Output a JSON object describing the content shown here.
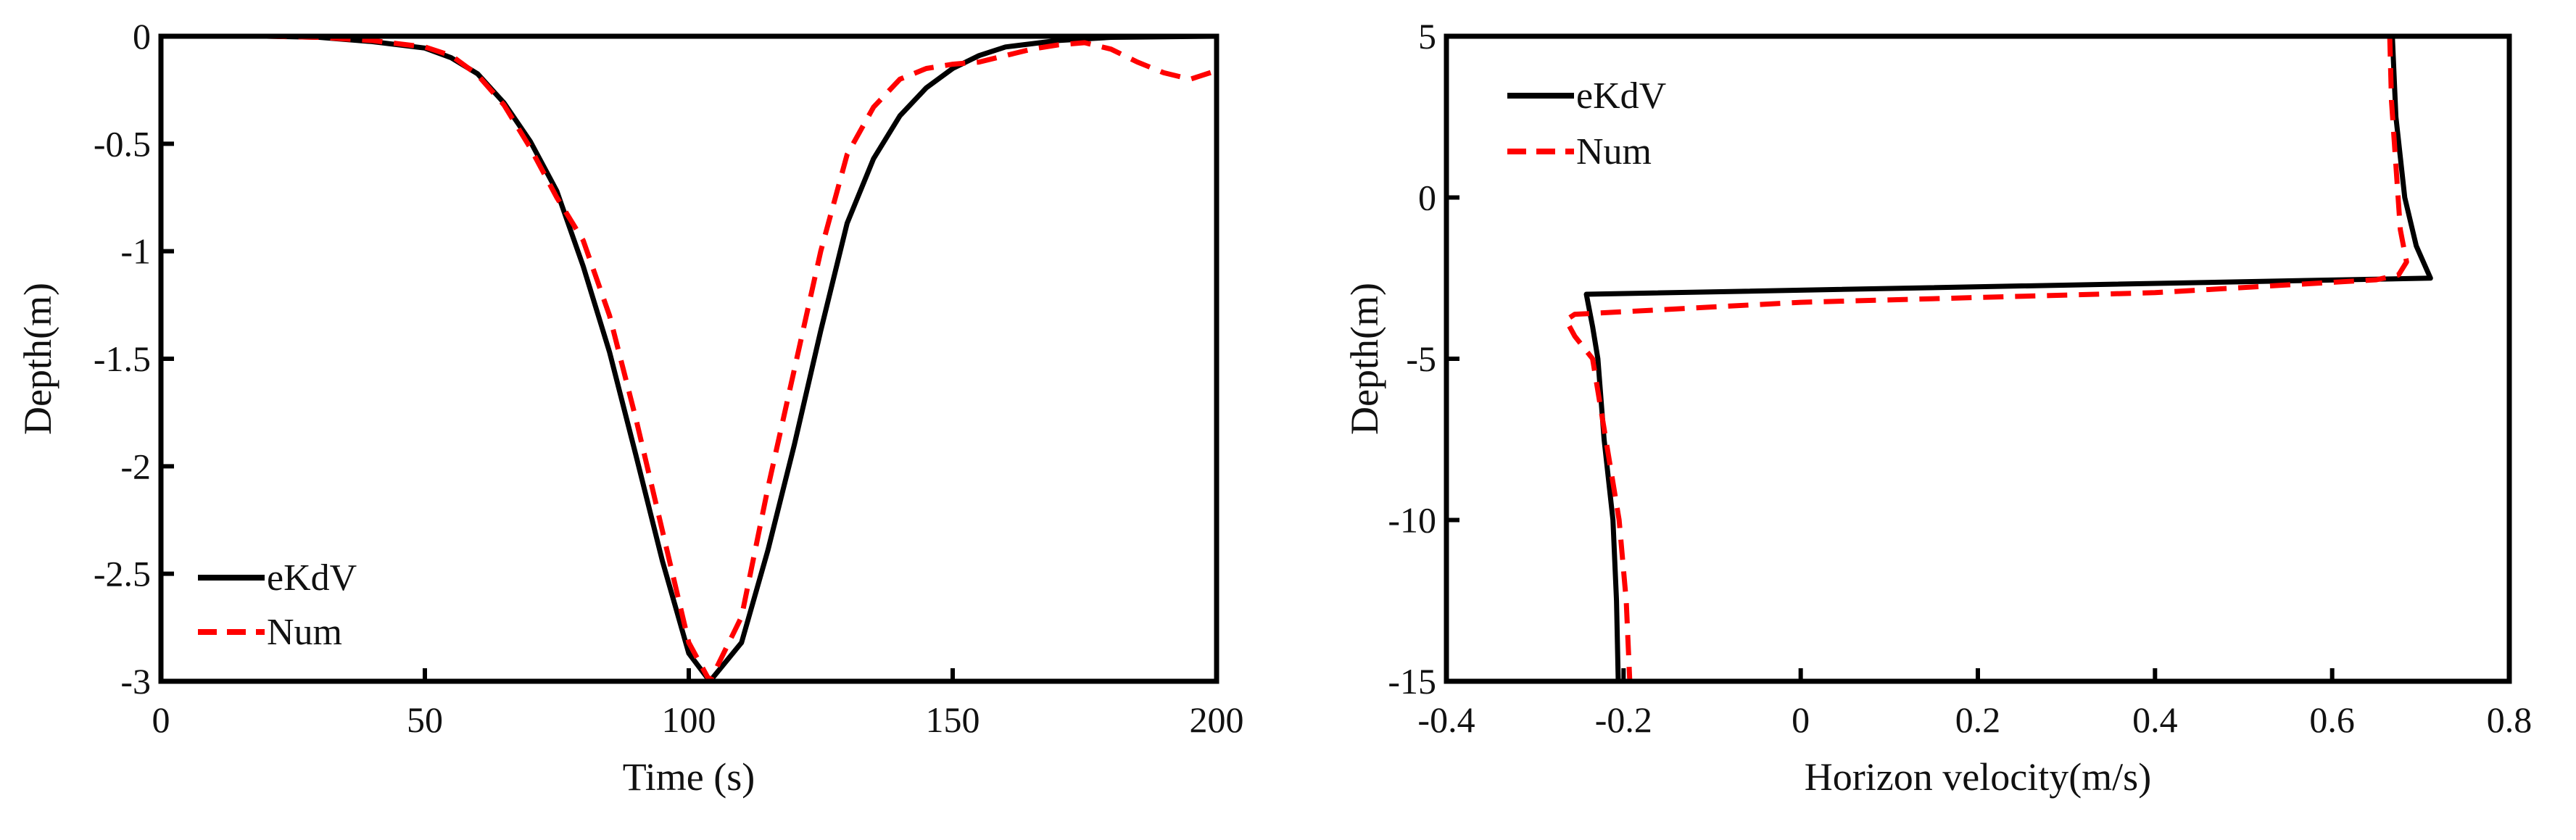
{
  "chart_data": [
    {
      "type": "line",
      "xlabel": "Time (s)",
      "ylabel": "Depth(m)",
      "xlim": [
        0,
        200
      ],
      "ylim": [
        -3,
        0
      ],
      "xticks": [
        0,
        50,
        100,
        150,
        200
      ],
      "xtick_labels": [
        "0",
        "50",
        "100",
        "150",
        "200"
      ],
      "yticks": [
        0,
        -0.5,
        -1,
        -1.5,
        -2,
        -2.5,
        -3
      ],
      "ytick_labels": [
        "0",
        "-0.5",
        "-1",
        "-1.5",
        "-2",
        "-2.5",
        "-3"
      ],
      "grid": false,
      "legend_position": "bottom-left",
      "series": [
        {
          "name": "eKdV",
          "color": "#000000",
          "style": "solid",
          "points": [
            [
              20,
              0
            ],
            [
              30,
              -0.005
            ],
            [
              40,
              -0.025
            ],
            [
              50,
              -0.055
            ],
            [
              55,
              -0.1
            ],
            [
              60,
              -0.175
            ],
            [
              65,
              -0.31
            ],
            [
              70,
              -0.49
            ],
            [
              75,
              -0.72
            ],
            [
              80,
              -1.07
            ],
            [
              85,
              -1.47
            ],
            [
              90,
              -1.95
            ],
            [
              95,
              -2.44
            ],
            [
              100,
              -2.87
            ],
            [
              104,
              -3
            ],
            [
              110,
              -2.82
            ],
            [
              115,
              -2.39
            ],
            [
              120,
              -1.9
            ],
            [
              125,
              -1.37
            ],
            [
              130,
              -0.87
            ],
            [
              135,
              -0.57
            ],
            [
              140,
              -0.37
            ],
            [
              145,
              -0.24
            ],
            [
              150,
              -0.15
            ],
            [
              155,
              -0.09
            ],
            [
              160,
              -0.05
            ],
            [
              170,
              -0.02
            ],
            [
              180,
              -0.005
            ],
            [
              200,
              0
            ]
          ]
        },
        {
          "name": "Num",
          "color": "#ff0000",
          "style": "dashed",
          "points": [
            [
              20,
              0
            ],
            [
              30,
              -0.005
            ],
            [
              40,
              -0.02
            ],
            [
              50,
              -0.05
            ],
            [
              55,
              -0.09
            ],
            [
              60,
              -0.18
            ],
            [
              65,
              -0.32
            ],
            [
              70,
              -0.52
            ],
            [
              75,
              -0.75
            ],
            [
              80,
              -0.95
            ],
            [
              85,
              -1.3
            ],
            [
              90,
              -1.78
            ],
            [
              95,
              -2.3
            ],
            [
              100,
              -2.82
            ],
            [
              104,
              -3
            ],
            [
              110,
              -2.7
            ],
            [
              115,
              -2.1
            ],
            [
              120,
              -1.55
            ],
            [
              125,
              -1.0
            ],
            [
              130,
              -0.55
            ],
            [
              135,
              -0.33
            ],
            [
              140,
              -0.2
            ],
            [
              145,
              -0.15
            ],
            [
              150,
              -0.13
            ],
            [
              155,
              -0.12
            ],
            [
              160,
              -0.09
            ],
            [
              165,
              -0.06
            ],
            [
              170,
              -0.04
            ],
            [
              175,
              -0.03
            ],
            [
              180,
              -0.06
            ],
            [
              185,
              -0.12
            ],
            [
              190,
              -0.17
            ],
            [
              195,
              -0.2
            ],
            [
              200,
              -0.16
            ]
          ]
        }
      ]
    },
    {
      "type": "line",
      "xlabel": "Horizon velocity(m/s)",
      "ylabel": "Depth(m)",
      "xlim": [
        -0.4,
        0.8
      ],
      "ylim": [
        -15,
        5
      ],
      "xticks": [
        -0.4,
        -0.2,
        0,
        0.2,
        0.4,
        0.6,
        0.8
      ],
      "xtick_labels": [
        "-0.4",
        "-0.2",
        "0",
        "0.2",
        "0.4",
        "0.6",
        "0.8"
      ],
      "yticks": [
        5,
        0,
        -5,
        -10,
        -15
      ],
      "ytick_labels": [
        "5",
        "0",
        "-5",
        "-10",
        "-15"
      ],
      "grid": false,
      "legend_position": "top-left",
      "series": [
        {
          "name": "eKdV",
          "color": "#000000",
          "style": "solid",
          "points": [
            [
              0.668,
              5
            ],
            [
              0.672,
              2.5
            ],
            [
              0.682,
              0
            ],
            [
              0.695,
              -1.5
            ],
            [
              0.711,
              -2.5
            ],
            [
              -0.242,
              -3.0
            ],
            [
              -0.235,
              -4
            ],
            [
              -0.229,
              -5
            ],
            [
              -0.222,
              -7.5
            ],
            [
              -0.212,
              -10
            ],
            [
              -0.208,
              -12.5
            ],
            [
              -0.206,
              -15
            ]
          ]
        },
        {
          "name": "Num",
          "color": "#ff0000",
          "style": "dashed",
          "points": [
            [
              0.665,
              5
            ],
            [
              0.667,
              3
            ],
            [
              0.672,
              1
            ],
            [
              0.677,
              -1
            ],
            [
              0.684,
              -2
            ],
            [
              0.675,
              -2.4
            ],
            [
              0.65,
              -2.55
            ],
            [
              0.4,
              -2.95
            ],
            [
              0,
              -3.25
            ],
            [
              -0.24,
              -3.6
            ],
            [
              -0.255,
              -3.62
            ],
            [
              -0.265,
              -3.8
            ],
            [
              -0.255,
              -4.3
            ],
            [
              -0.235,
              -5
            ],
            [
              -0.22,
              -7.5
            ],
            [
              -0.205,
              -10
            ],
            [
              -0.197,
              -12.5
            ],
            [
              -0.193,
              -15
            ]
          ]
        }
      ]
    }
  ]
}
